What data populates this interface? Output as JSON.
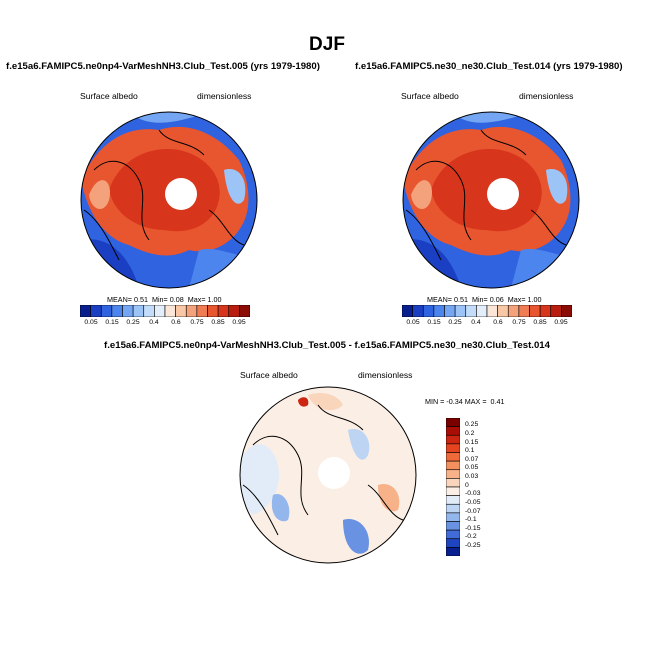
{
  "main_title": "DJF",
  "panels": [
    {
      "title": "f.e15a6.FAMIPC5.ne0np4-VarMeshNH3.Club_Test.005 (yrs 1979-1980)",
      "left_label": "Surface albedo",
      "right_label": "dimensionless",
      "stats": {
        "mean_label": "MEAN=",
        "mean": "0.51",
        "min_label": "Min=",
        "min": "0.08",
        "max_label": "Max=",
        "max": "1.00"
      }
    },
    {
      "title": "f.e15a6.FAMIPC5.ne30_ne30.Club_Test.014 (yrs 1979-1980)",
      "left_label": "Surface albedo",
      "right_label": "dimensionless",
      "stats": {
        "mean_label": "MEAN=",
        "mean": "0.51",
        "min_label": "Min=",
        "min": "0.06",
        "max_label": "Max=",
        "max": "1.00"
      }
    },
    {
      "title": "f.e15a6.FAMIPC5.ne0np4-VarMeshNH3.Club_Test.005 - f.e15a6.FAMIPC5.ne30_ne30.Club_Test.014",
      "left_label": "Surface albedo",
      "right_label": "dimensionless",
      "stats": {
        "min_label": "MIN =",
        "min": "-0.34",
        "max_label": "MAX =",
        "max": "0.41"
      }
    }
  ],
  "colorbars": {
    "albedo": {
      "labels": [
        "0.05",
        "0.15",
        "0.25",
        "0.4",
        "0.6",
        "0.75",
        "0.85",
        "0.95"
      ],
      "colors": [
        "#0a1f8f",
        "#1a3fc2",
        "#2f63e0",
        "#4d85ee",
        "#74a6f3",
        "#9cc4f7",
        "#c2dcfa",
        "#e4eefb",
        "#fbe6d8",
        "#f8c7a6",
        "#f4a27c",
        "#ef7c53",
        "#e8562f",
        "#d8361c",
        "#b81d10",
        "#8a0c05"
      ]
    },
    "difference": {
      "labels": [
        "0.25",
        "0.2",
        "0.15",
        "0.1",
        "0.07",
        "0.05",
        "0.03",
        "0",
        "-0.03",
        "-0.05",
        "-0.07",
        "-0.1",
        "-0.15",
        "-0.2",
        "-0.25"
      ],
      "colors": [
        "#7a0000",
        "#a80e05",
        "#cc2612",
        "#e4441f",
        "#ef6a3a",
        "#f48f5e",
        "#f7b289",
        "#f9d5bc",
        "#fbeee5",
        "#e2ecf8",
        "#bdd4f3",
        "#93b6ec",
        "#6992e3",
        "#416bd6",
        "#1f44bf",
        "#0a1f8f"
      ]
    }
  },
  "colors": {
    "land_warm": "#e8562f",
    "ocean_cold": "#2f63e0",
    "snow_white": "#ffffff"
  }
}
